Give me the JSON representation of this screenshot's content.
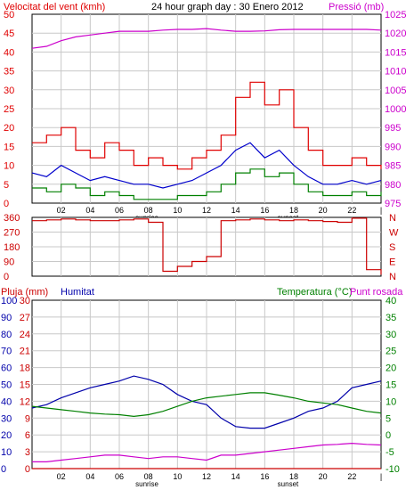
{
  "header": {
    "wind_label": "Velocitat del vent (kmh)",
    "title": "24 hour graph day : 30 Enero 2012",
    "pressure_label": "Pressió (mb)",
    "rain_label": "Pluja (mm)",
    "humidity_label": "Humitat",
    "temp_label": "Temperatura (°C)",
    "dew_label": "Punt rosada"
  },
  "colors": {
    "gust": "#e00000",
    "wind_avg": "#0000cc",
    "wind_min": "#008000",
    "pressure": "#cc00cc",
    "direction": "#cc0000",
    "humidity": "#0000aa",
    "temperature": "#008000",
    "dewpoint": "#cc00cc",
    "rain": "#cc0000",
    "grid": "#c8c8c8"
  },
  "x_axis": {
    "ticks": [
      "02",
      "04",
      "06",
      "08",
      "10",
      "12",
      "14",
      "16",
      "18",
      "20",
      "22",
      "|"
    ],
    "sunrise": "sunrise",
    "sunset": "sunset"
  },
  "chart_data": [
    {
      "type": "line",
      "title": "Velocitat del vent (kmh)",
      "y_ticks": [
        "50",
        "45",
        "40",
        "35",
        "30",
        "25",
        "20",
        "15",
        "10",
        "5",
        "0"
      ],
      "y2_ticks": [
        "1025",
        "1020",
        "1015",
        "1010",
        "1005",
        "1000",
        "995",
        "990",
        "985",
        "980",
        "975"
      ],
      "ylim": [
        0,
        50
      ],
      "y2lim": [
        975,
        1025
      ],
      "x": [
        0,
        1,
        2,
        3,
        4,
        5,
        6,
        7,
        8,
        9,
        10,
        11,
        12,
        13,
        14,
        15,
        16,
        17,
        18,
        19,
        20,
        21,
        22,
        23,
        24
      ],
      "series": [
        {
          "name": "gust",
          "values": [
            16,
            18,
            20,
            14,
            12,
            16,
            14,
            10,
            12,
            10,
            9,
            12,
            14,
            18,
            28,
            32,
            26,
            30,
            20,
            14,
            10,
            10,
            12,
            10,
            9
          ]
        },
        {
          "name": "wind_avg",
          "values": [
            8,
            7,
            10,
            8,
            6,
            7,
            6,
            5,
            5,
            4,
            5,
            6,
            8,
            10,
            14,
            16,
            12,
            14,
            10,
            7,
            5,
            5,
            6,
            5,
            6
          ]
        },
        {
          "name": "wind_min",
          "values": [
            4,
            3,
            5,
            4,
            2,
            3,
            2,
            1,
            1,
            1,
            2,
            2,
            3,
            5,
            8,
            9,
            7,
            8,
            5,
            3,
            2,
            2,
            3,
            2,
            3
          ]
        },
        {
          "name": "pressure",
          "values": [
            1016,
            1016.5,
            1018,
            1019,
            1019.5,
            1020,
            1020.5,
            1020.5,
            1020.5,
            1020.8,
            1021,
            1021,
            1021.2,
            1020.8,
            1020.5,
            1020.5,
            1020.6,
            1020.9,
            1021,
            1021,
            1021,
            1021,
            1021,
            1021,
            1020.8
          ]
        }
      ]
    },
    {
      "type": "line",
      "title": "",
      "y_ticks": [
        "360",
        "270",
        "180",
        "90",
        "0"
      ],
      "y2_ticks": [
        "N",
        "W",
        "S",
        "E",
        "N"
      ],
      "ylim": [
        0,
        360
      ],
      "x": [
        0,
        1,
        2,
        3,
        4,
        5,
        6,
        7,
        8,
        9,
        10,
        11,
        12,
        13,
        14,
        15,
        16,
        17,
        18,
        19,
        20,
        21,
        22,
        23,
        24
      ],
      "series": [
        {
          "name": "direction",
          "values": [
            340,
            345,
            350,
            345,
            340,
            340,
            345,
            350,
            330,
            30,
            60,
            90,
            120,
            340,
            345,
            350,
            345,
            340,
            345,
            340,
            335,
            330,
            355,
            40,
            10
          ]
        }
      ]
    },
    {
      "type": "line",
      "title": "",
      "y_ticks": [
        "100",
        "90",
        "80",
        "70",
        "60",
        "50",
        "40",
        "30",
        "20",
        "10",
        "0"
      ],
      "y_ticks_rain": [
        "30",
        "27",
        "24",
        "21",
        "18",
        "15",
        "12",
        "9",
        "6",
        "3",
        "0"
      ],
      "y2_ticks": [
        "40",
        "35",
        "30",
        "25",
        "20",
        "15",
        "10",
        "5",
        "0",
        "-5",
        "-10"
      ],
      "ylim": [
        0,
        100
      ],
      "y2lim": [
        -10,
        40
      ],
      "x": [
        0,
        1,
        2,
        3,
        4,
        5,
        6,
        7,
        8,
        9,
        10,
        11,
        12,
        13,
        14,
        15,
        16,
        17,
        18,
        19,
        20,
        21,
        22,
        23,
        24
      ],
      "series": [
        {
          "name": "humidity",
          "values": [
            36,
            38,
            42,
            45,
            48,
            50,
            52,
            55,
            53,
            50,
            44,
            40,
            38,
            30,
            25,
            24,
            24,
            27,
            30,
            34,
            36,
            40,
            48,
            50,
            52
          ]
        },
        {
          "name": "temperature",
          "values": [
            8.5,
            8.0,
            7.5,
            7.0,
            6.5,
            6.2,
            6.0,
            5.5,
            6.0,
            7.0,
            8.5,
            10.0,
            11.0,
            11.5,
            12.0,
            12.5,
            12.5,
            11.8,
            11.0,
            10.0,
            9.5,
            9.0,
            8.0,
            7.0,
            6.5
          ]
        },
        {
          "name": "dewpoint",
          "values": [
            -8.0,
            -8.0,
            -7.5,
            -7.0,
            -6.5,
            -6.0,
            -6.0,
            -6.5,
            -7.0,
            -6.5,
            -6.5,
            -7.0,
            -7.5,
            -6.0,
            -6.0,
            -5.5,
            -5.0,
            -4.5,
            -4.0,
            -3.5,
            -3.0,
            -2.8,
            -2.5,
            -2.8,
            -3.0
          ]
        },
        {
          "name": "rain",
          "values": [
            0,
            0,
            0,
            0,
            0,
            0,
            0,
            0,
            0,
            0,
            0,
            0,
            0,
            0,
            0,
            0,
            0,
            0,
            0,
            0,
            0,
            0,
            0,
            0,
            0
          ]
        }
      ]
    }
  ]
}
